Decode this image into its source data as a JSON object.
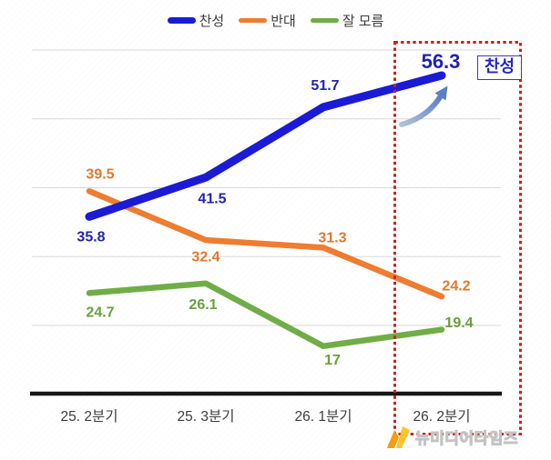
{
  "chart_data": {
    "type": "line",
    "categories": [
      "25. 2분기",
      "25. 3분기",
      "26. 1분기",
      "26. 2분기"
    ],
    "series": [
      {
        "name": "찬성",
        "color": "#1b1bd6",
        "label_color": "#2323ae",
        "values": [
          35.8,
          41.5,
          51.7,
          56.3
        ]
      },
      {
        "name": "반대",
        "color": "#ed7d31",
        "label_color": "#e0792f",
        "values": [
          39.5,
          32.4,
          31.3,
          24.2
        ]
      },
      {
        "name": "잘 모름",
        "color": "#70ad47",
        "label_color": "#699f3f",
        "values": [
          24.7,
          26.1,
          17,
          19.4
        ]
      }
    ],
    "title": "",
    "xlabel": "",
    "ylabel": "",
    "ylim": [
      10,
      62
    ],
    "gridline_values": [
      20,
      30,
      40,
      50,
      60
    ],
    "grid": true,
    "legend_position": "top",
    "highlight": {
      "quarter": "26. 2분기",
      "callout_label": "찬성",
      "callout_value": "56.3"
    }
  },
  "watermark": {
    "text": "뉴미디어타임즈"
  },
  "colors": {
    "background": "#ffffff",
    "gridline": "#d9d9d9",
    "axis": "#161616",
    "highlight_box": "#cf1f1f",
    "arrow_light": "#b3c2da",
    "arrow_dark": "#5b7fc7",
    "axis_label": "#3d3d3d",
    "watermark_text": "#c3c3c3",
    "logo_orange": "#f59e0b",
    "logo_yellow": "#fcc230"
  }
}
